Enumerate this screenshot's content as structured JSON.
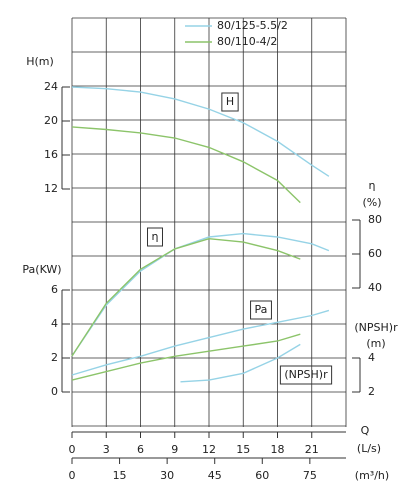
{
  "chart_data": [
    {
      "type": "line",
      "xlabel": "Q",
      "xunit": "(L/s)",
      "x2label": "(m³/h)",
      "xlim": [
        0,
        24
      ],
      "xticks": [
        0,
        3,
        6,
        9,
        12,
        15,
        18,
        21
      ],
      "x2lim": [
        0,
        86.4
      ],
      "x2ticks": [
        0,
        15,
        30,
        45,
        60,
        75
      ],
      "ylabel": "H(m)",
      "ylim": [
        12,
        24
      ],
      "yticks": [
        12,
        16,
        20,
        24
      ],
      "annotation": "H",
      "series": [
        {
          "name": "80/125-5.5/2",
          "color": "#96d3e6",
          "x": [
            0,
            3,
            6,
            9,
            12,
            15,
            18,
            21,
            22.5
          ],
          "values": [
            24,
            23.8,
            23.4,
            22.6,
            21.4,
            19.8,
            17.6,
            14.8,
            13.5
          ]
        },
        {
          "name": "80/110-4/2",
          "color": "#8cc46a",
          "x": [
            0,
            3,
            6,
            9,
            12,
            15,
            18,
            20
          ],
          "values": [
            19.3,
            19.0,
            18.6,
            18.0,
            16.9,
            15.2,
            13.0,
            10.4
          ]
        }
      ]
    },
    {
      "type": "line",
      "ylabel": "η",
      "yunit": "(%)",
      "ylim": [
        40,
        80
      ],
      "yticks": [
        40,
        60,
        80
      ],
      "annotation": "η",
      "series": [
        {
          "color": "#96d3e6",
          "x": [
            0,
            3,
            6,
            9,
            12,
            15,
            18,
            21,
            22.5
          ],
          "values": [
            0,
            30,
            50,
            63,
            70,
            72,
            70,
            66,
            62
          ]
        },
        {
          "color": "#8cc46a",
          "x": [
            0,
            3,
            6,
            9,
            12,
            15,
            18,
            20
          ],
          "values": [
            0,
            31,
            51,
            63,
            69,
            67,
            62,
            57
          ]
        }
      ]
    },
    {
      "type": "line",
      "ylabel": "Pa(KW)",
      "ylim": [
        0,
        6
      ],
      "yticks": [
        0,
        2,
        4,
        6
      ],
      "annotation": "Pa",
      "series": [
        {
          "color": "#96d3e6",
          "x": [
            0,
            3,
            6,
            9,
            12,
            15,
            18,
            21,
            22.5
          ],
          "values": [
            1.0,
            1.6,
            2.1,
            2.7,
            3.2,
            3.7,
            4.1,
            4.5,
            4.8
          ]
        },
        {
          "color": "#8cc46a",
          "x": [
            0,
            3,
            6,
            9,
            12,
            15,
            18,
            20
          ],
          "values": [
            0.7,
            1.2,
            1.7,
            2.1,
            2.4,
            2.7,
            3.0,
            3.4
          ]
        }
      ]
    },
    {
      "type": "line",
      "ylabel": "(NPSH)r",
      "yunit": "(m)",
      "ylim": [
        2,
        4
      ],
      "yticks": [
        2,
        4
      ],
      "annotation": "(NPSH)r",
      "series": [
        {
          "color": "#96d3e6",
          "x": [
            9.5,
            12,
            15,
            18,
            20
          ],
          "values": [
            2.6,
            2.7,
            3.1,
            4.0,
            4.8
          ]
        }
      ]
    }
  ]
}
